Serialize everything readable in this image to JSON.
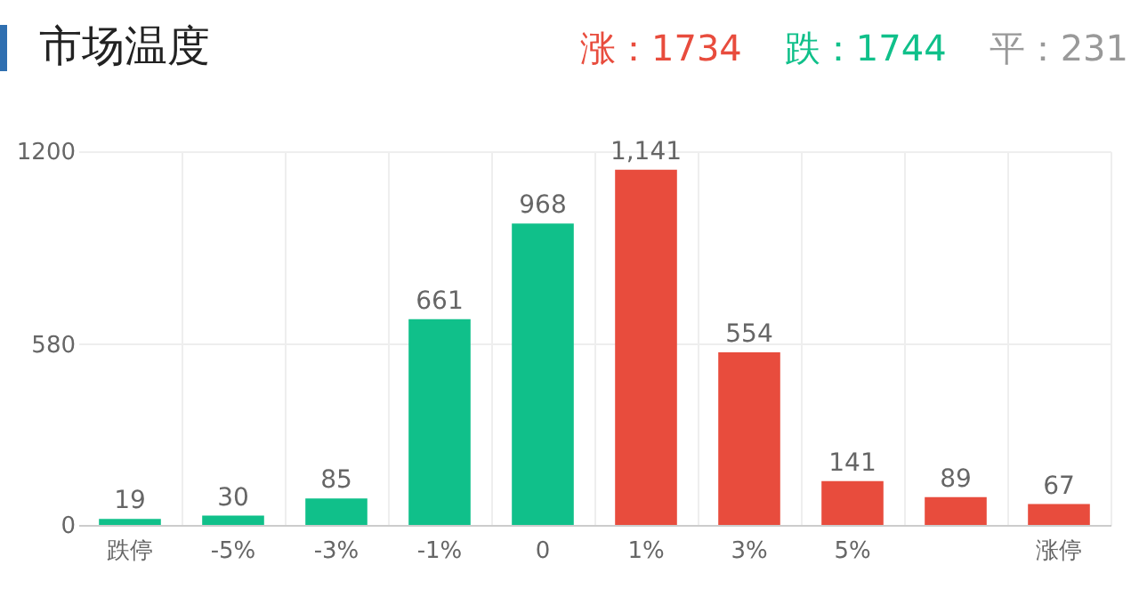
{
  "chart_data": {
    "type": "bar",
    "title": "市场温度",
    "annotations": [
      "涨：1734",
      "跌：1744",
      "平：231"
    ],
    "categories": [
      "跌停",
      "-5%",
      "-3%",
      "-1%",
      "0",
      "1%",
      "3%",
      "5%",
      null,
      "涨停"
    ],
    "values": [
      19,
      30,
      85,
      661,
      968,
      1141,
      554,
      141,
      89,
      67
    ],
    "value_labels": [
      "19",
      "30",
      "85",
      "661",
      "968",
      "1,141",
      "554",
      "141",
      "89",
      "67"
    ],
    "colors": [
      "#10c08a",
      "#10c08a",
      "#10c08a",
      "#10c08a",
      "#10c08a",
      "#e84c3d",
      "#e84c3d",
      "#e84c3d",
      "#e84c3d",
      "#e84c3d"
    ],
    "ylim": [
      0,
      1200
    ],
    "yticks": [
      0,
      580,
      1200
    ],
    "grid": true
  }
}
